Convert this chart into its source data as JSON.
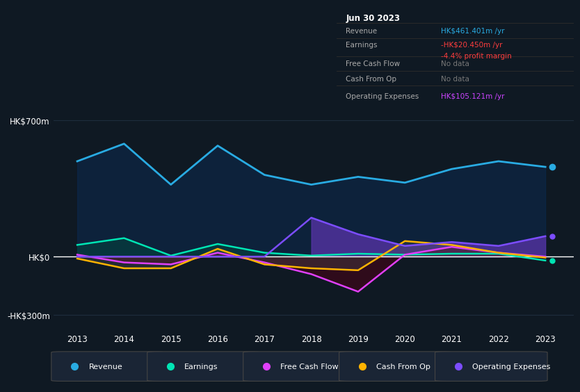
{
  "background_color": "#0f1923",
  "plot_bg_color": "#0f1923",
  "years": [
    2013,
    2014,
    2015,
    2016,
    2017,
    2018,
    2019,
    2020,
    2021,
    2022,
    2023
  ],
  "revenue": [
    490,
    580,
    370,
    570,
    420,
    370,
    410,
    380,
    450,
    490,
    461
  ],
  "earnings": [
    60,
    95,
    5,
    65,
    20,
    5,
    15,
    10,
    15,
    15,
    -20
  ],
  "free_cash_flow": [
    10,
    -30,
    -40,
    20,
    -30,
    -90,
    -180,
    10,
    50,
    20,
    0
  ],
  "cash_from_op": [
    -10,
    -60,
    -60,
    40,
    -40,
    -60,
    -70,
    80,
    60,
    20,
    -5
  ],
  "operating_expenses": [
    0,
    0,
    0,
    0,
    0,
    200,
    115,
    55,
    75,
    55,
    105
  ],
  "revenue_color": "#29abe2",
  "earnings_color": "#00e5b4",
  "free_cash_flow_color": "#e040fb",
  "cash_from_op_color": "#ffb300",
  "operating_expenses_color": "#7c4dff",
  "zero_line_color": "#ffffff",
  "grid_color": "#1e2d3d",
  "y_ticks": [
    -300,
    0,
    700
  ],
  "y_labels": [
    "-HK$300m",
    "HK$0",
    "HK$700m"
  ],
  "ylim": [
    -380,
    760
  ],
  "x_ticks": [
    2013,
    2014,
    2015,
    2016,
    2017,
    2018,
    2019,
    2020,
    2021,
    2022,
    2023
  ],
  "info_box": {
    "date": "Jun 30 2023",
    "revenue_label": "Revenue",
    "revenue_val": "HK$461.401m /yr",
    "revenue_color": "#29abe2",
    "earnings_label": "Earnings",
    "earnings_val": "-HK$20.450m /yr",
    "earnings_color": "#ff3d3d",
    "profit_margin": "-4.4% profit margin",
    "profit_margin_color": "#ff3d3d",
    "fcf_label": "Free Cash Flow",
    "fcf_val": "No data",
    "fcf_color": "#777777",
    "cfo_label": "Cash From Op",
    "cfo_val": "No data",
    "cfo_color": "#777777",
    "opex_label": "Operating Expenses",
    "opex_val": "HK$105.121m /yr",
    "opex_color": "#cc44ff"
  },
  "legend_items": [
    {
      "label": "Revenue",
      "color": "#29abe2"
    },
    {
      "label": "Earnings",
      "color": "#00e5b4"
    },
    {
      "label": "Free Cash Flow",
      "color": "#e040fb"
    },
    {
      "label": "Cash From Op",
      "color": "#ffb300"
    },
    {
      "label": "Operating Expenses",
      "color": "#7c4dff"
    }
  ]
}
